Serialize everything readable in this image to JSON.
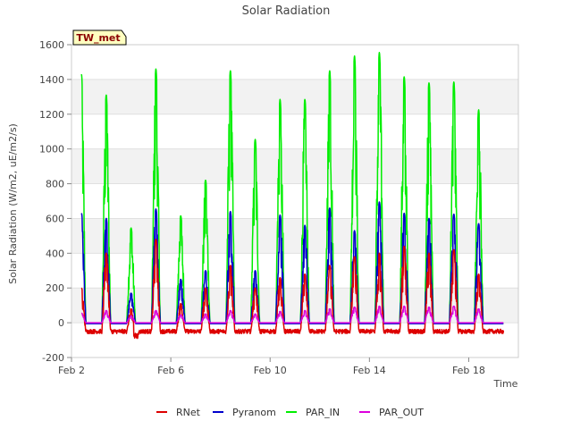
{
  "chart_data": {
    "type": "line",
    "title": "Solar Radiation",
    "xlabel": "Time",
    "ylabel": "Solar Radiation (W/m2, uE/m2/s)",
    "station_label": "TW_met",
    "ylim": [
      -200,
      1600
    ],
    "yticks": [
      -200,
      0,
      200,
      400,
      600,
      800,
      1000,
      1200,
      1400,
      1600
    ],
    "xlim": [
      "Feb 2",
      "Feb 20"
    ],
    "xticks": [
      {
        "value": 2,
        "label": "Feb 2"
      },
      {
        "value": 6,
        "label": "Feb 6"
      },
      {
        "value": 10,
        "label": "Feb 10"
      },
      {
        "value": 14,
        "label": "Feb 14"
      },
      {
        "value": 18,
        "label": "Feb 18"
      }
    ],
    "grid": "horizontal bands",
    "legend_position": "bottom",
    "day_start": 2.4,
    "days": [
      {
        "day": 2.4,
        "peak": {
          "RNet": 200,
          "Pyranom": 630,
          "PAR_IN": 1430,
          "PAR_OUT": 55
        }
      },
      {
        "day": 3.4,
        "peak": {
          "RNet": 400,
          "Pyranom": 600,
          "PAR_IN": 1310,
          "PAR_OUT": 70
        }
      },
      {
        "day": 4.4,
        "peak": {
          "RNet": 80,
          "Pyranom": 170,
          "PAR_IN": 545,
          "PAR_OUT": 40
        }
      },
      {
        "day": 5.4,
        "peak": {
          "RNet": 480,
          "Pyranom": 655,
          "PAR_IN": 1460,
          "PAR_OUT": 70
        }
      },
      {
        "day": 6.4,
        "peak": {
          "RNet": 110,
          "Pyranom": 250,
          "PAR_IN": 615,
          "PAR_OUT": 45
        }
      },
      {
        "day": 7.4,
        "peak": {
          "RNet": 200,
          "Pyranom": 300,
          "PAR_IN": 820,
          "PAR_OUT": 50
        }
      },
      {
        "day": 8.4,
        "peak": {
          "RNet": 330,
          "Pyranom": 640,
          "PAR_IN": 1450,
          "PAR_OUT": 70
        }
      },
      {
        "day": 9.4,
        "peak": {
          "RNet": 200,
          "Pyranom": 300,
          "PAR_IN": 1055,
          "PAR_OUT": 50
        }
      },
      {
        "day": 10.4,
        "peak": {
          "RNet": 260,
          "Pyranom": 620,
          "PAR_IN": 1285,
          "PAR_OUT": 65
        }
      },
      {
        "day": 11.4,
        "peak": {
          "RNet": 280,
          "Pyranom": 560,
          "PAR_IN": 1285,
          "PAR_OUT": 70
        }
      },
      {
        "day": 12.4,
        "peak": {
          "RNet": 330,
          "Pyranom": 660,
          "PAR_IN": 1450,
          "PAR_OUT": 80
        }
      },
      {
        "day": 13.4,
        "peak": {
          "RNet": 380,
          "Pyranom": 530,
          "PAR_IN": 1535,
          "PAR_OUT": 90
        }
      },
      {
        "day": 14.4,
        "peak": {
          "RNet": 400,
          "Pyranom": 695,
          "PAR_IN": 1555,
          "PAR_OUT": 95
        }
      },
      {
        "day": 15.4,
        "peak": {
          "RNet": 440,
          "Pyranom": 630,
          "PAR_IN": 1415,
          "PAR_OUT": 95
        }
      },
      {
        "day": 16.4,
        "peak": {
          "RNet": 400,
          "Pyranom": 600,
          "PAR_IN": 1380,
          "PAR_OUT": 90
        }
      },
      {
        "day": 17.4,
        "peak": {
          "RNet": 420,
          "Pyranom": 625,
          "PAR_IN": 1385,
          "PAR_OUT": 95
        }
      },
      {
        "day": 18.4,
        "peak": {
          "RNet": 280,
          "Pyranom": 570,
          "PAR_IN": 1225,
          "PAR_OUT": 80
        }
      }
    ],
    "night_values": {
      "RNet": -50,
      "Pyranom": -5,
      "PAR_IN": -3,
      "PAR_OUT": 0
    },
    "series": [
      {
        "name": "RNet",
        "color": "#dd0000"
      },
      {
        "name": "Pyranom",
        "color": "#0000cc"
      },
      {
        "name": "PAR_IN",
        "color": "#00ee00"
      },
      {
        "name": "PAR_OUT",
        "color": "#dd00dd"
      }
    ]
  }
}
